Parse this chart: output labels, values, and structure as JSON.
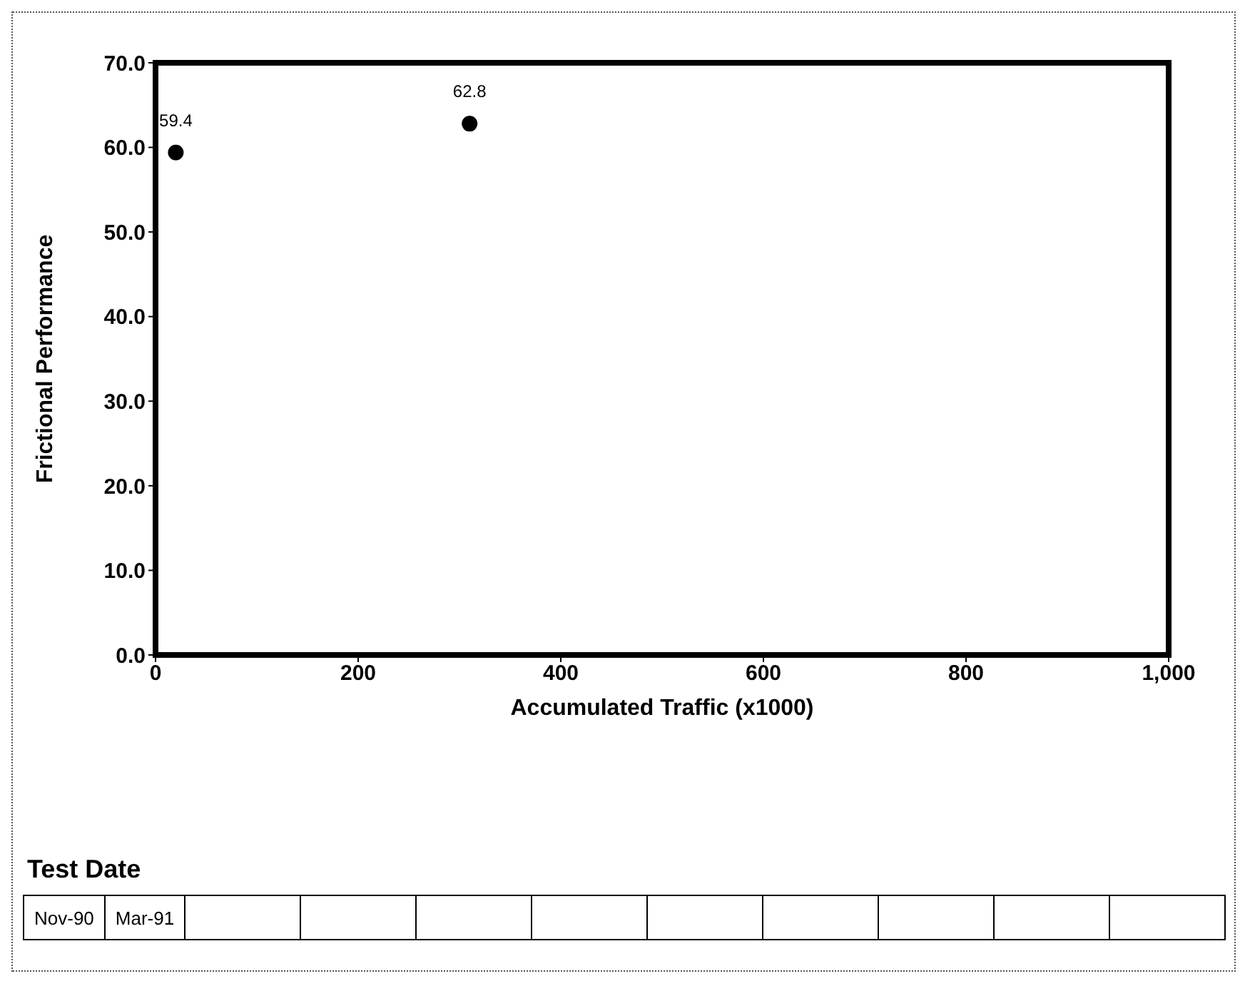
{
  "chart_data": {
    "type": "scatter",
    "xlabel": "Accumulated Traffic (x1000)",
    "ylabel": "Frictional Performance",
    "x": [
      20,
      310
    ],
    "values": [
      59.4,
      62.8
    ],
    "color": "#000000",
    "marker": "circle",
    "data_labels": true,
    "xlim": [
      0,
      1000
    ],
    "xticks": [
      0,
      200,
      400,
      600,
      800,
      {
        "value": 1000,
        "label": "1,000"
      }
    ],
    "ylim": [
      0,
      70
    ],
    "yticks": [
      {
        "value": 0,
        "label": "0.0"
      },
      {
        "value": 10,
        "label": "10.0"
      },
      {
        "value": 20,
        "label": "20.0"
      },
      {
        "value": 30,
        "label": "30.0"
      },
      {
        "value": 40,
        "label": "40.0"
      },
      {
        "value": 50,
        "label": "50.0"
      },
      {
        "value": 60,
        "label": "60.0"
      },
      {
        "value": 70,
        "label": "70.0"
      }
    ],
    "grid": false,
    "legend": false,
    "annotations": [
      "Test Date",
      "Nov-90",
      "Mar-91"
    ]
  }
}
